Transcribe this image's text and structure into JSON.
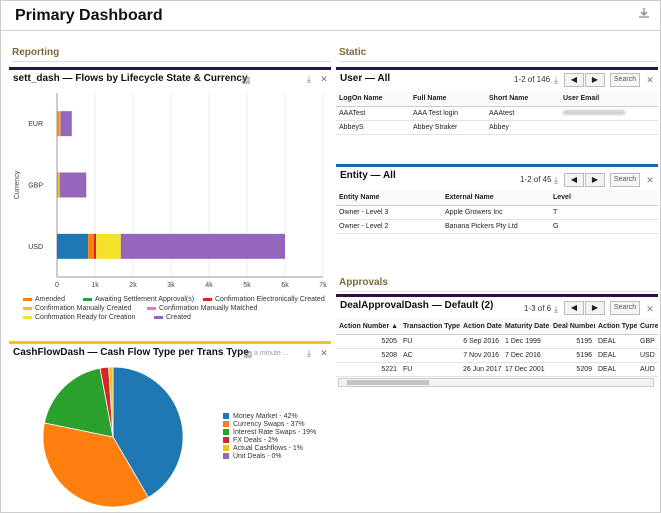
{
  "page": {
    "title": "Primary Dashboard"
  },
  "sections": {
    "reporting": "Reporting",
    "static": "Static",
    "approvals": "Approvals"
  },
  "flows": {
    "title": "sett_dash — Flows by Lifecycle State & Currency",
    "legend": [
      {
        "label": "Amended",
        "color": "#ff7f0e"
      },
      {
        "label": "Awaiting Settlement Approval(s)",
        "color": "#2ca02c"
      },
      {
        "label": "Confirmation Electronically Created",
        "color": "#d62728"
      },
      {
        "label": "Confirmation Manually Created",
        "color": "#f2c319"
      },
      {
        "label": "Confirmation Manually Matched",
        "color": "#e377c2"
      },
      {
        "label": "Confirmation Ready for Creation",
        "color": "#f5e12a"
      },
      {
        "label": "Created",
        "color": "#9467bd"
      }
    ]
  },
  "cashflow": {
    "title": "CashFlowDash — Cash Flow Type per Trans Type",
    "subtitle": "a minute ...",
    "legend": [
      {
        "label": "Money Market - 42%",
        "color": "#1f77b4"
      },
      {
        "label": "Currency Swaps - 37%",
        "color": "#ff7f0e"
      },
      {
        "label": "Interest Rate Swaps - 19%",
        "color": "#2ca02c"
      },
      {
        "label": "FX Deals - 2%",
        "color": "#d62728"
      },
      {
        "label": "Actual Cashflows - 1%",
        "color": "#f2c319"
      },
      {
        "label": "Unit Deals - 0%",
        "color": "#9467bd"
      }
    ]
  },
  "users": {
    "title": "User — All",
    "pager": "1-2 of 146",
    "search": "Search",
    "columns": [
      "LogOn Name",
      "Full Name",
      "Short Name",
      "User Email"
    ],
    "rows": [
      [
        "AAATest",
        "AAA Test login",
        "AAAtest",
        ""
      ],
      [
        "AbbeyS",
        "Abbey Straker",
        "Abbey",
        ""
      ]
    ]
  },
  "entity": {
    "title": "Entity — All",
    "pager": "1-2 of 45",
    "search": "Search",
    "columns": [
      "Entity Name",
      "External Name",
      "Level"
    ],
    "rows": [
      [
        "Owner - Level 3",
        "Apple Growers Inc",
        "T"
      ],
      [
        "Owner - Level 2",
        "Banana Pickers Pty Ltd",
        "G"
      ]
    ]
  },
  "approvals": {
    "title": "DealApprovalDash — Default (2)",
    "pager": "1-3 of 6",
    "search": "Search",
    "columns": [
      "Action Number",
      "Transaction Type",
      "Action Date",
      "Maturity Date",
      "Deal Number",
      "Action Type",
      "Curre"
    ],
    "rows": [
      [
        "5205",
        "FU",
        "6 Sep 2016",
        "1 Dec 1999",
        "5195",
        "DEAL",
        "GBP"
      ],
      [
        "5208",
        "AC",
        "7 Nov 2016",
        "7 Dec 2016",
        "5196",
        "DEAL",
        "USD"
      ],
      [
        "5221",
        "FU",
        "26 Jun 2017",
        "17 Dec 2001",
        "5209",
        "DEAL",
        "AUD"
      ]
    ]
  },
  "chart_data": [
    {
      "type": "bar",
      "orientation": "horizontal",
      "stacked": true,
      "title": "sett_dash — Flows by Lifecycle State & Currency",
      "ylabel": "Currency",
      "xlabel": "",
      "xlim": [
        0,
        7000
      ],
      "xticks": [
        "0",
        "1k",
        "2k",
        "3k",
        "4k",
        "5k",
        "6k",
        "7k"
      ],
      "categories": [
        "EUR",
        "GBP",
        "USD"
      ],
      "series": [
        {
          "name": "Amended",
          "values": [
            50,
            30,
            0
          ],
          "color": "#ff7f0e"
        },
        {
          "name": "Awaiting Settlement Approval(s)",
          "values": [
            0,
            0,
            0
          ],
          "color": "#2ca02c"
        },
        {
          "name": "Confirmation Electronically Created",
          "values": [
            0,
            0,
            0
          ],
          "color": "#d62728"
        },
        {
          "name": "Confirmation Manually Created",
          "values": [
            40,
            40,
            0
          ],
          "color": "#f2c319"
        },
        {
          "name": "Confirmation Manually Matched",
          "values": [
            0,
            0,
            0
          ],
          "color": "#e377c2"
        },
        {
          "name": "Confirmation Ready for Creation",
          "values": [
            0,
            0,
            0
          ],
          "color": "#f5e12a"
        },
        {
          "name": "Created",
          "values": [
            300,
            700,
            0
          ],
          "color": "#9467bd"
        }
      ],
      "usd_stack": [
        {
          "name": "Money Market",
          "value": 820,
          "color": "#1f77b4"
        },
        {
          "name": "Amended",
          "value": 150,
          "color": "#ff7f0e"
        },
        {
          "name": "Confirmation Electronically Created",
          "value": 60,
          "color": "#d62728"
        },
        {
          "name": "Confirmation Ready for Creation",
          "value": 650,
          "color": "#f5e12a"
        },
        {
          "name": "Created",
          "value": 4320,
          "color": "#9467bd"
        }
      ]
    },
    {
      "type": "pie",
      "title": "CashFlowDash — Cash Flow Type per Trans Type",
      "slices": [
        {
          "label": "Money Market",
          "value": 42,
          "color": "#1f77b4"
        },
        {
          "label": "Currency Swaps",
          "value": 37,
          "color": "#ff7f0e"
        },
        {
          "label": "Interest Rate Swaps",
          "value": 19,
          "color": "#2ca02c"
        },
        {
          "label": "FX Deals",
          "value": 2,
          "color": "#d62728"
        },
        {
          "label": "Actual Cashflows",
          "value": 1,
          "color": "#f2c319"
        },
        {
          "label": "Unit Deals",
          "value": 0,
          "color": "#9467bd"
        }
      ]
    }
  ]
}
